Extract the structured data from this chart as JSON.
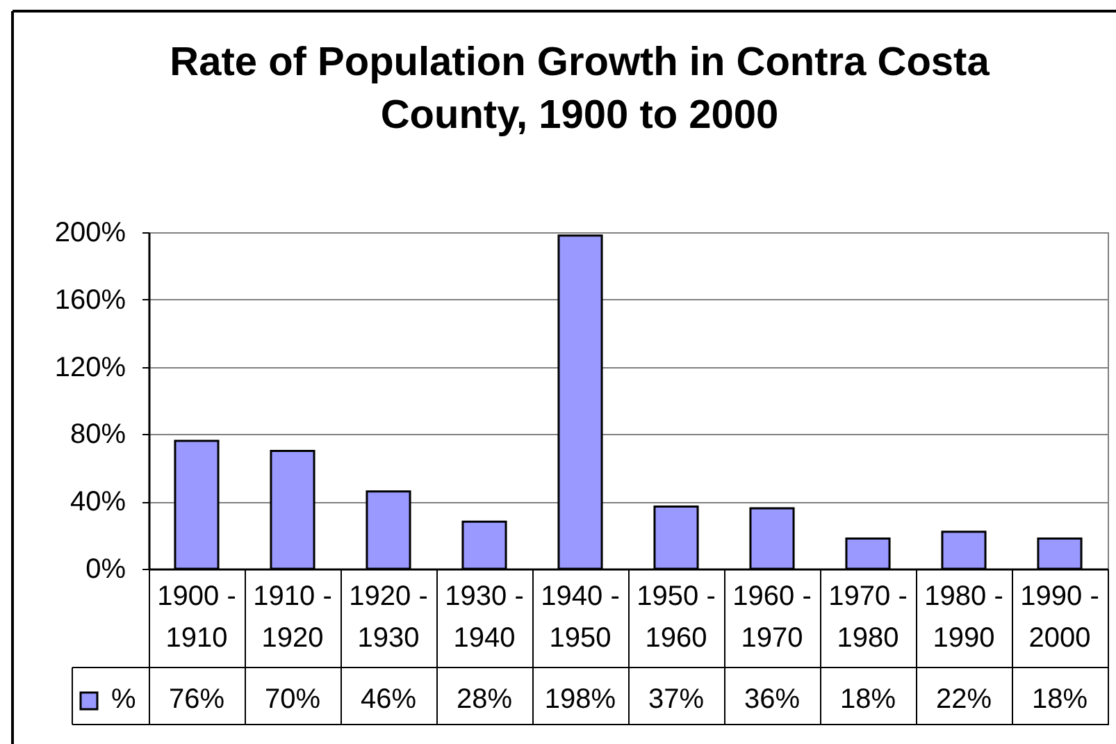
{
  "chart_data": {
    "type": "bar",
    "title": "Rate of Population Growth in Contra Costa County, 1900 to 2000",
    "categories": [
      "1900 - 1910",
      "1910 - 1920",
      "1920 - 1930",
      "1930 - 1940",
      "1940 - 1950",
      "1950 - 1960",
      "1960 - 1970",
      "1970 - 1980",
      "1980 - 1990",
      "1990 - 2000"
    ],
    "series": [
      {
        "name": "%",
        "color": "#9999ff",
        "values": [
          76,
          70,
          46,
          28,
          198,
          37,
          36,
          18,
          22,
          18
        ],
        "value_labels": [
          "76%",
          "70%",
          "46%",
          "28%",
          "198%",
          "37%",
          "36%",
          "18%",
          "22%",
          "18%"
        ]
      }
    ],
    "ylim": [
      0,
      200
    ],
    "yticks": [
      {
        "value": 0,
        "label": "0%"
      },
      {
        "value": 40,
        "label": "40%"
      },
      {
        "value": 80,
        "label": "80%"
      },
      {
        "value": 120,
        "label": "120%"
      },
      {
        "value": 160,
        "label": "160%"
      },
      {
        "value": 200,
        "label": "200%"
      }
    ],
    "grid": "y",
    "legend": "bottom left"
  }
}
